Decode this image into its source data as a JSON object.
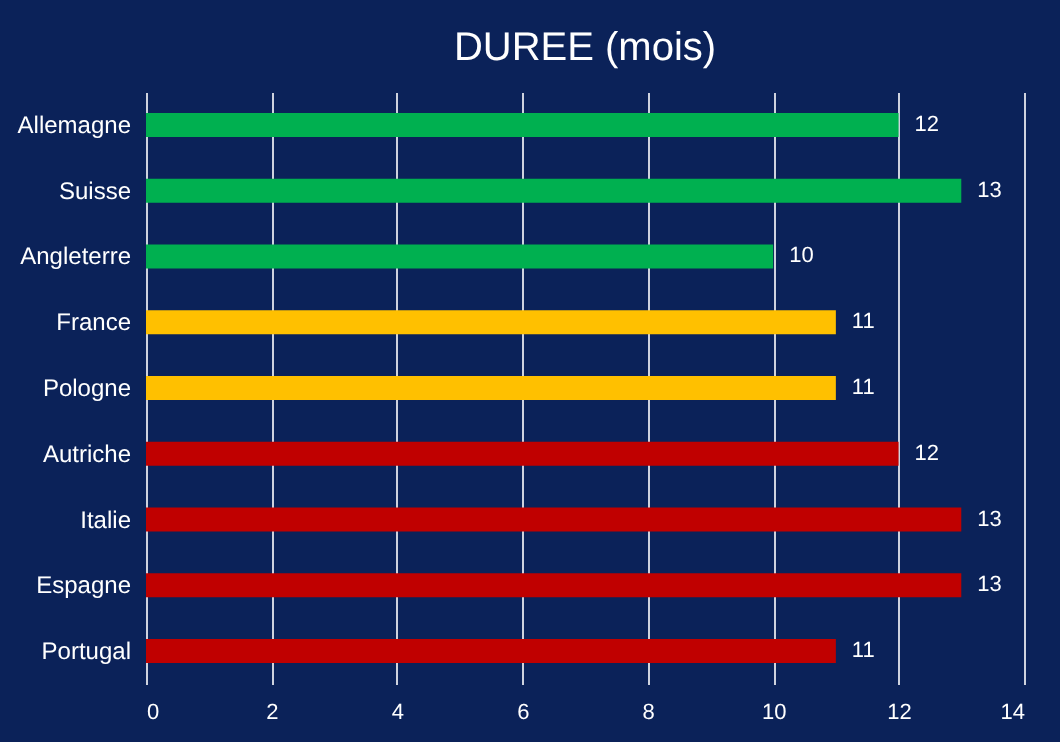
{
  "chart_data": {
    "type": "bar",
    "orientation": "horizontal",
    "title": "DUREE (mois)",
    "categories": [
      "Allemagne",
      "Suisse",
      "Angleterre",
      "France",
      "Pologne",
      "Autriche",
      "Italie",
      "Espagne",
      "Portugal"
    ],
    "values": [
      12,
      13,
      10,
      11,
      11,
      12,
      13,
      13,
      11
    ],
    "colors": [
      "#00b050",
      "#00b050",
      "#00b050",
      "#ffc000",
      "#ffc000",
      "#c00000",
      "#c00000",
      "#c00000",
      "#c00000"
    ],
    "xlim": [
      0,
      14
    ],
    "xticks": [
      0,
      2,
      4,
      6,
      8,
      10,
      12,
      14
    ],
    "grid": "x",
    "data_labels": true
  }
}
